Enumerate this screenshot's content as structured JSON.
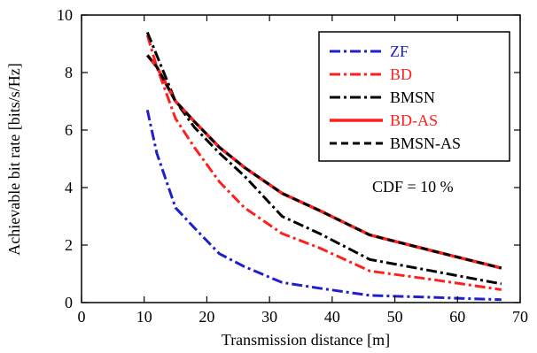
{
  "chart_data": {
    "type": "line",
    "xlabel": "Transmission distance [m]",
    "ylabel": "Achievable bit rate [bits/s/Hz]",
    "xlim": [
      0,
      70
    ],
    "ylim": [
      0,
      10
    ],
    "xticks": [
      0,
      10,
      20,
      30,
      40,
      50,
      60,
      70
    ],
    "yticks": [
      0,
      2,
      4,
      6,
      8,
      10
    ],
    "grid": false,
    "legend_position": "top-right",
    "annotation": "CDF = 10 %",
    "series": [
      {
        "name": "ZF",
        "color": "#1f1fcc",
        "dash": "dashdot",
        "x": [
          10.5,
          12,
          15,
          18,
          22,
          26,
          32,
          38,
          46,
          56,
          67
        ],
        "y": [
          6.7,
          5.2,
          3.3,
          2.6,
          1.7,
          1.25,
          0.7,
          0.5,
          0.25,
          0.18,
          0.1
        ]
      },
      {
        "name": "BD",
        "color": "#ff1f1f",
        "dash": "dashdot",
        "x": [
          10.5,
          12,
          15,
          18,
          22,
          26,
          32,
          38,
          46,
          56,
          67
        ],
        "y": [
          9.3,
          8.2,
          6.4,
          5.4,
          4.2,
          3.3,
          2.4,
          1.9,
          1.1,
          0.8,
          0.45
        ]
      },
      {
        "name": "BMSN",
        "color": "#000000",
        "dash": "dashdot",
        "x": [
          10.5,
          12,
          15,
          18,
          22,
          26,
          32,
          38,
          46,
          56,
          67
        ],
        "y": [
          9.4,
          8.6,
          7.0,
          6.1,
          5.2,
          4.4,
          3.0,
          2.4,
          1.5,
          1.1,
          0.65
        ]
      },
      {
        "name": "BD-AS",
        "color": "#ff1f1f",
        "dash": "solid",
        "x": [
          10.5,
          12,
          15,
          18,
          22,
          26,
          32,
          38,
          46,
          56,
          67
        ],
        "y": [
          8.6,
          8.2,
          7.0,
          6.3,
          5.4,
          4.7,
          3.8,
          3.2,
          2.35,
          1.8,
          1.2
        ]
      },
      {
        "name": "BMSN-AS",
        "color": "#000000",
        "dash": "dashed",
        "x": [
          10.5,
          12,
          15,
          18,
          22,
          26,
          32,
          38,
          46,
          56,
          67
        ],
        "y": [
          8.6,
          8.2,
          7.0,
          6.3,
          5.4,
          4.7,
          3.8,
          3.2,
          2.35,
          1.8,
          1.2
        ]
      }
    ]
  }
}
